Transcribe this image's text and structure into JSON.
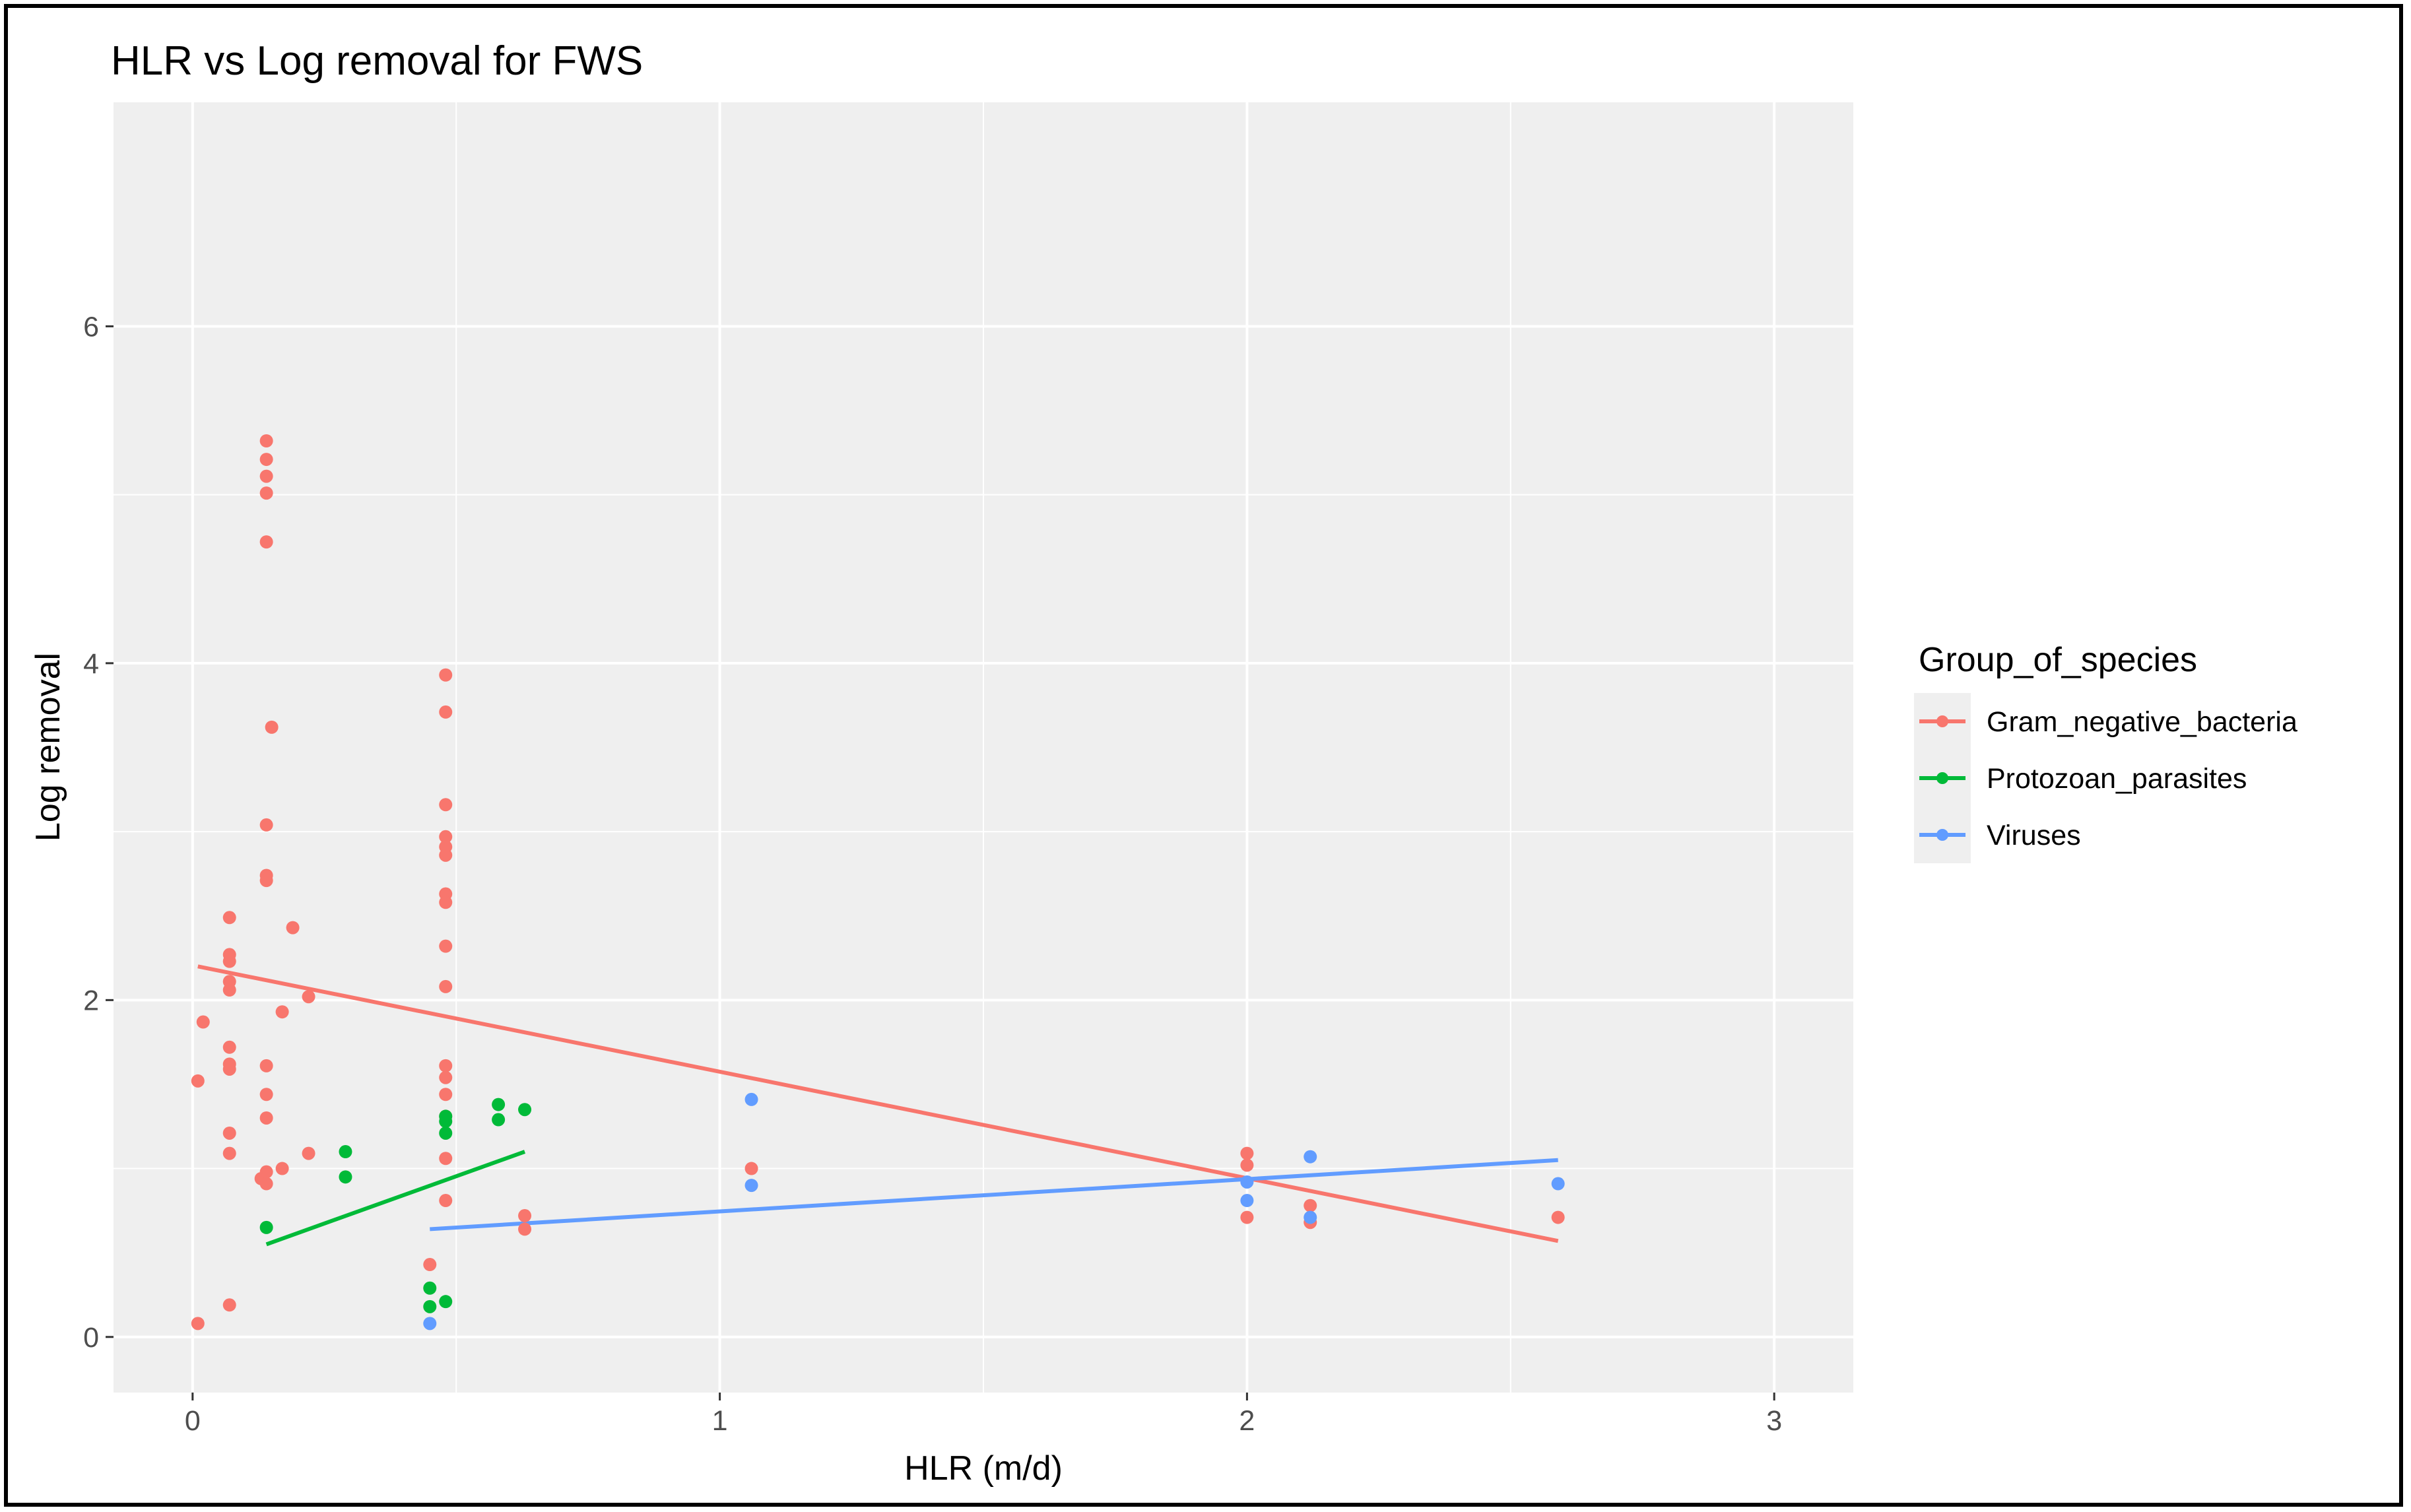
{
  "chart_data": {
    "type": "scatter",
    "title": "HLR vs Log removal for FWS",
    "xlabel": "HLR (m/d)",
    "ylabel": "Log removal",
    "xlim": [
      -0.15,
      3.15
    ],
    "ylim": [
      -0.33,
      7.33
    ],
    "x_ticks": [
      0,
      1,
      2,
      3
    ],
    "y_ticks": [
      0,
      2,
      4,
      6
    ],
    "x_tick_labels": [
      "0",
      "1",
      "2",
      "3"
    ],
    "y_tick_labels": [
      "0",
      "2",
      "4",
      "6"
    ],
    "grid": true,
    "legend": {
      "title": "Group_of_species",
      "position": "right"
    },
    "series": [
      {
        "name": "Gram_negative_bacteria",
        "color": "#f8766d",
        "points": [
          [
            0.01,
            0.08
          ],
          [
            0.01,
            1.52
          ],
          [
            0.02,
            1.87
          ],
          [
            0.07,
            2.49
          ],
          [
            0.07,
            2.27
          ],
          [
            0.07,
            2.23
          ],
          [
            0.07,
            2.11
          ],
          [
            0.07,
            2.06
          ],
          [
            0.07,
            1.72
          ],
          [
            0.07,
            1.62
          ],
          [
            0.07,
            1.59
          ],
          [
            0.07,
            1.21
          ],
          [
            0.07,
            1.09
          ],
          [
            0.07,
            0.19
          ],
          [
            0.14,
            5.32
          ],
          [
            0.14,
            5.21
          ],
          [
            0.14,
            5.11
          ],
          [
            0.14,
            5.01
          ],
          [
            0.14,
            4.72
          ],
          [
            0.15,
            3.62
          ],
          [
            0.14,
            3.04
          ],
          [
            0.14,
            2.74
          ],
          [
            0.14,
            2.71
          ],
          [
            0.14,
            1.61
          ],
          [
            0.14,
            1.44
          ],
          [
            0.14,
            1.3
          ],
          [
            0.14,
            0.98
          ],
          [
            0.13,
            0.94
          ],
          [
            0.14,
            0.91
          ],
          [
            0.17,
            1.93
          ],
          [
            0.17,
            1.0
          ],
          [
            0.19,
            2.43
          ],
          [
            0.22,
            2.02
          ],
          [
            0.22,
            1.09
          ],
          [
            0.48,
            3.93
          ],
          [
            0.48,
            3.71
          ],
          [
            0.48,
            3.16
          ],
          [
            0.48,
            2.97
          ],
          [
            0.48,
            2.91
          ],
          [
            0.48,
            2.86
          ],
          [
            0.48,
            2.63
          ],
          [
            0.48,
            2.58
          ],
          [
            0.48,
            2.32
          ],
          [
            0.48,
            2.08
          ],
          [
            0.48,
            1.61
          ],
          [
            0.48,
            1.54
          ],
          [
            0.48,
            1.44
          ],
          [
            0.48,
            1.31
          ],
          [
            0.48,
            1.06
          ],
          [
            0.48,
            0.81
          ],
          [
            0.45,
            0.43
          ],
          [
            0.63,
            0.72
          ],
          [
            0.63,
            0.64
          ],
          [
            1.06,
            1.0
          ],
          [
            2.0,
            1.09
          ],
          [
            2.0,
            1.02
          ],
          [
            2.0,
            0.71
          ],
          [
            2.12,
            0.78
          ],
          [
            2.12,
            0.68
          ],
          [
            2.59,
            0.71
          ]
        ],
        "trend": {
          "x": [
            0.01,
            2.59
          ],
          "y": [
            2.2,
            0.57
          ]
        }
      },
      {
        "name": "Protozoan_parasites",
        "color": "#00ba38",
        "points": [
          [
            0.14,
            0.65
          ],
          [
            0.29,
            1.1
          ],
          [
            0.29,
            0.95
          ],
          [
            0.45,
            0.29
          ],
          [
            0.45,
            0.18
          ],
          [
            0.48,
            0.21
          ],
          [
            0.48,
            1.31
          ],
          [
            0.48,
            1.28
          ],
          [
            0.48,
            1.21
          ],
          [
            0.58,
            1.38
          ],
          [
            0.58,
            1.29
          ],
          [
            0.63,
            1.35
          ]
        ],
        "trend": {
          "x": [
            0.14,
            0.63
          ],
          "y": [
            0.55,
            1.1
          ]
        }
      },
      {
        "name": "Viruses",
        "color": "#619cff",
        "points": [
          [
            0.45,
            0.08
          ],
          [
            1.06,
            1.41
          ],
          [
            1.06,
            0.9
          ],
          [
            2.0,
            0.81
          ],
          [
            2.0,
            0.92
          ],
          [
            2.12,
            1.07
          ],
          [
            2.12,
            0.71
          ],
          [
            2.59,
            0.91
          ]
        ],
        "trend": {
          "x": [
            0.45,
            2.59
          ],
          "y": [
            0.64,
            1.05
          ]
        }
      }
    ]
  }
}
